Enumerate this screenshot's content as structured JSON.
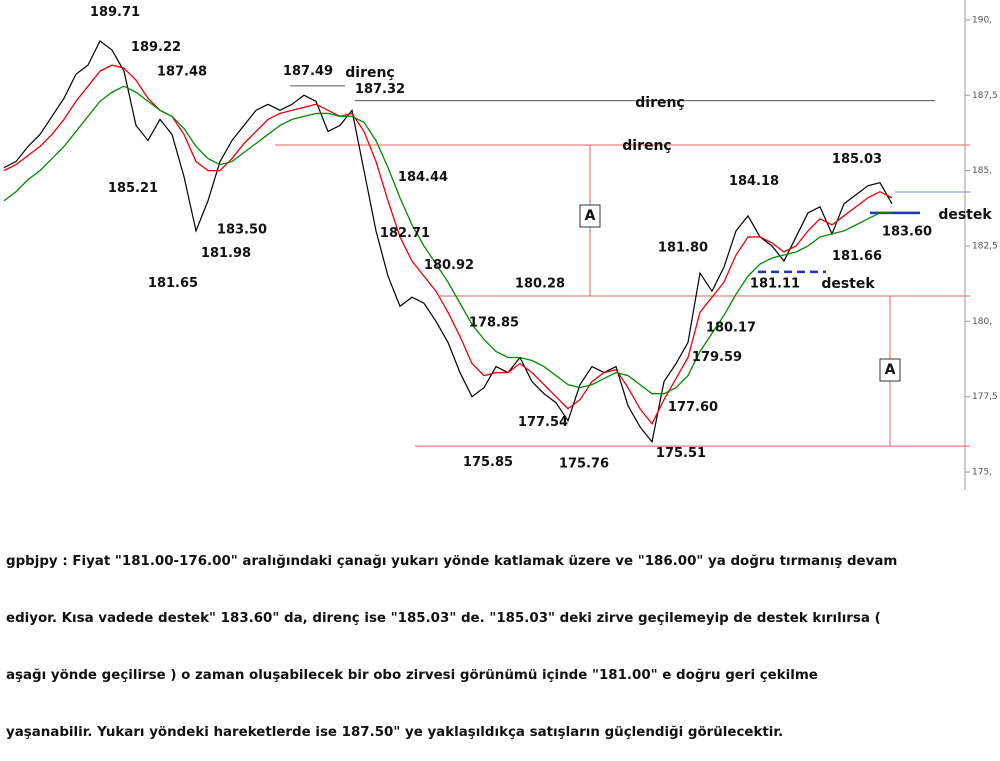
{
  "chart_data": {
    "type": "line",
    "series": [
      {
        "name": null,
        "color": "#000000",
        "values": [
          185.1,
          185.3,
          185.8,
          186.2,
          186.8,
          187.4,
          188.2,
          188.5,
          189.3,
          189.0,
          188.3,
          186.5,
          186.0,
          186.7,
          186.2,
          184.8,
          183.0,
          184.0,
          185.3,
          186.0,
          186.5,
          187.0,
          187.2,
          187.0,
          187.2,
          187.5,
          187.3,
          186.3,
          186.5,
          187.0,
          185.0,
          183.0,
          181.5,
          180.5,
          180.8,
          180.6,
          180.0,
          179.3,
          178.3,
          177.5,
          177.8,
          178.5,
          178.3,
          178.8,
          178.0,
          177.6,
          177.3,
          176.7,
          177.9,
          178.5,
          178.3,
          178.5,
          177.2,
          176.5,
          176.0,
          178.0,
          178.6,
          179.3,
          181.6,
          181.0,
          181.8,
          183.0,
          183.5,
          182.8,
          182.5,
          182.0,
          182.8,
          183.6,
          183.8,
          182.9,
          183.9,
          184.2,
          184.5,
          184.6,
          183.9
        ]
      },
      {
        "name": null,
        "color": "#e8000b",
        "values": [
          185.0,
          185.2,
          185.5,
          185.8,
          186.2,
          186.7,
          187.3,
          187.8,
          188.3,
          188.5,
          188.4,
          188.0,
          187.4,
          187.0,
          186.8,
          186.2,
          185.3,
          185.0,
          185.0,
          185.4,
          185.9,
          186.3,
          186.7,
          186.9,
          187.0,
          187.1,
          187.2,
          187.0,
          186.8,
          186.9,
          186.3,
          185.3,
          184.0,
          182.8,
          182.0,
          181.5,
          181.0,
          180.3,
          179.5,
          178.6,
          178.2,
          178.3,
          178.3,
          178.6,
          178.3,
          177.9,
          177.5,
          177.1,
          177.4,
          178.0,
          178.3,
          178.4,
          177.8,
          177.1,
          176.6,
          177.4,
          178.1,
          178.8,
          180.3,
          180.8,
          181.3,
          182.2,
          182.8,
          182.8,
          182.6,
          182.3,
          182.5,
          183.0,
          183.4,
          183.2,
          183.5,
          183.8,
          184.1,
          184.3,
          184.1
        ]
      },
      {
        "name": null,
        "color": "#008a00",
        "values": [
          184.0,
          184.3,
          184.7,
          185.0,
          185.4,
          185.8,
          186.3,
          186.8,
          187.3,
          187.6,
          187.8,
          187.6,
          187.3,
          187.0,
          186.8,
          186.4,
          185.8,
          185.4,
          185.2,
          185.3,
          185.6,
          185.9,
          186.2,
          186.5,
          186.7,
          186.8,
          186.9,
          186.9,
          186.8,
          186.8,
          186.6,
          186.0,
          185.1,
          184.1,
          183.2,
          182.5,
          181.9,
          181.3,
          180.6,
          179.9,
          179.4,
          179.0,
          178.8,
          178.8,
          178.7,
          178.5,
          178.2,
          177.9,
          177.8,
          177.9,
          178.1,
          178.3,
          178.2,
          177.9,
          177.6,
          177.6,
          177.8,
          178.2,
          179.0,
          179.6,
          180.2,
          180.9,
          181.5,
          181.9,
          182.1,
          182.2,
          182.3,
          182.5,
          182.8,
          182.9,
          183.0,
          183.2,
          183.4,
          183.6,
          183.6
        ]
      }
    ],
    "ylim": [
      174.67,
      190.66
    ],
    "yticks": [
      {
        "value": 175,
        "label": "175,"
      },
      {
        "value": 177.5,
        "label": "177,5"
      },
      {
        "value": 180,
        "label": "180,"
      },
      {
        "value": 182.5,
        "label": "182,5"
      },
      {
        "value": 185,
        "label": "185,"
      },
      {
        "value": 187.5,
        "label": "187,5"
      },
      {
        "value": 190,
        "label": "190,"
      }
    ],
    "price_labels": {
      "values": [
        189.71,
        189.22,
        187.48,
        185.21,
        183.5,
        181.98,
        181.65,
        187.49,
        187.32,
        184.44,
        182.71,
        180.92,
        180.28,
        178.85,
        177.54,
        175.85,
        175.76,
        175.51,
        177.6,
        179.59,
        180.17,
        181.8,
        184.18,
        181.11,
        181.66,
        185.03,
        183.6
      ],
      "value_labels": [
        "189.71",
        "189.22",
        "187.48",
        "185.21",
        "183.50",
        "181.98",
        "181.65",
        "187.49",
        "187.32",
        "184.44",
        "182.71",
        "180.92",
        "180.28",
        "178.85",
        "177.54",
        "175.85",
        "175.76",
        "175.51",
        "177.60",
        "179.59",
        "180.17",
        "181.80",
        "184.18",
        "181.11",
        "181.66",
        "185.03",
        "183.60"
      ]
    },
    "levels": [
      {
        "value": 187.32,
        "color": "#555555"
      },
      {
        "value": 185.85,
        "color": "#e06060"
      },
      {
        "value": 180.84,
        "color": "#e06060"
      },
      {
        "value": 175.86,
        "color": "#e06060"
      },
      {
        "value": 183.6,
        "color": "#2233bb"
      },
      {
        "value": 181.64,
        "color": "#2233bb"
      },
      {
        "value": 184.29,
        "color": "#7788cc"
      },
      {
        "value": 187.81,
        "color": "#555555"
      }
    ],
    "annotations": [
      "direnç",
      "direnç",
      "direnç",
      "destek",
      "destek",
      "A",
      "A"
    ]
  },
  "caption": [
    "gpbjpy : Fiyat \"181.00-176.00\" aralığındaki çanağı yukarı yönde katlamak üzere ve \"186.00\" ya doğru tırmanış devam",
    "ediyor. Kısa vadede destek\" 183.60\" da, direnç ise \"185.03\" de. \"185.03\" deki zirve geçilemeyip de destek kırılırsa (",
    "aşağı yönde geçilirse ) o zaman oluşabilecek bir obo zirvesi görünümü içinde \"181.00\" e doğru geri çekilme",
    "yaşanabilir. Yukarı yöndeki hareketlerde ise 187.50\" ye yaklaşıldıkça satışların güçlendiği görülecektir."
  ]
}
